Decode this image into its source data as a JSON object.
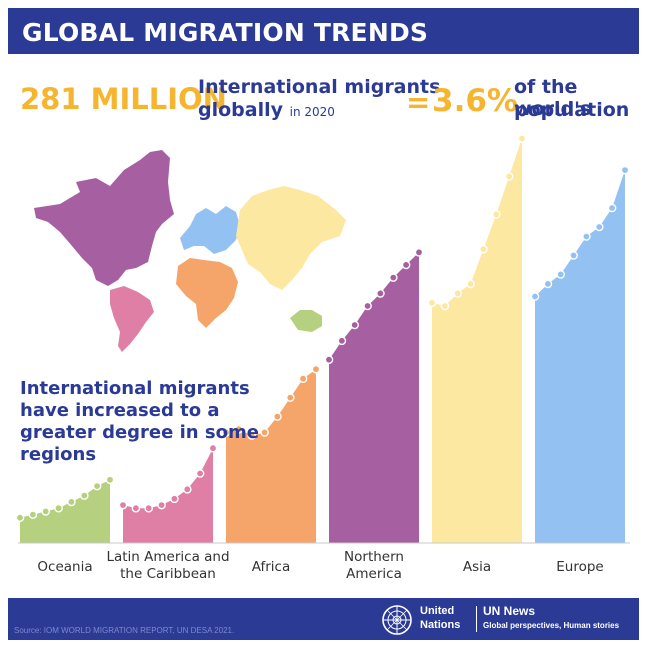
{
  "header": {
    "title": "GLOBAL MIGRATION TRENDS"
  },
  "stats": {
    "migrants_number": "281 MILLION",
    "migrants_desc_line1": "International migrants",
    "migrants_desc_line2": "globally",
    "migrants_year": "in 2020",
    "equals": "=",
    "share": "3.6%",
    "share_desc_line1": "of the world's",
    "share_desc_line2": "population"
  },
  "headline": "International migrants have increased to a greater degree in some regions",
  "chart_data": {
    "type": "area",
    "title": "",
    "xlabel": "",
    "ylabel": "",
    "series": [
      {
        "name": "Oceania",
        "label_lines": [
          "Oceania"
        ],
        "color": "#b5d07f",
        "values": [
          0.08,
          0.09,
          0.1,
          0.11,
          0.13,
          0.15,
          0.18,
          0.2
        ]
      },
      {
        "name": "Latin America and the Caribbean",
        "label_lines": [
          "Latin America and",
          "the Caribbean"
        ],
        "color": "#e07fa6",
        "values": [
          0.12,
          0.11,
          0.11,
          0.12,
          0.14,
          0.17,
          0.22,
          0.3
        ]
      },
      {
        "name": "Africa",
        "label_lines": [
          "Africa"
        ],
        "color": "#f6a56a",
        "values": [
          0.35,
          0.36,
          0.34,
          0.35,
          0.4,
          0.46,
          0.52,
          0.55
        ]
      },
      {
        "name": "Northern America",
        "label_lines": [
          "Northern",
          "America"
        ],
        "color": "#a660a1",
        "values": [
          0.58,
          0.64,
          0.69,
          0.75,
          0.79,
          0.84,
          0.88,
          0.92
        ]
      },
      {
        "name": "Asia",
        "label_lines": [
          "Asia"
        ],
        "color": "#fde8a1",
        "values": [
          0.76,
          0.75,
          0.79,
          0.82,
          0.93,
          1.04,
          1.16,
          1.28
        ]
      },
      {
        "name": "Europe",
        "label_lines": [
          "Europe"
        ],
        "color": "#93c1f2",
        "values": [
          0.78,
          0.82,
          0.85,
          0.91,
          0.97,
          1.0,
          1.06,
          1.18
        ]
      }
    ]
  },
  "map": {
    "regions": [
      {
        "name": "Northern America",
        "color": "#a660a1"
      },
      {
        "name": "Latin America and the Caribbean",
        "color": "#e07fa6"
      },
      {
        "name": "Europe",
        "color": "#93c1f2"
      },
      {
        "name": "Africa",
        "color": "#f6a56a"
      },
      {
        "name": "Asia",
        "color": "#fde8a1"
      },
      {
        "name": "Oceania",
        "color": "#b5d07f"
      }
    ]
  },
  "footer": {
    "source": "Source: IOM WORLD MIGRATION REPORT, UN DESA 2021.",
    "un_line1": "United",
    "un_line2": "Nations",
    "news_title": "UN News",
    "news_tagline": "Global perspectives, Human stories"
  },
  "colors": {
    "brand_blue": "#2a3a95",
    "accent_yellow": "#f6b52f"
  },
  "icons": {
    "un_emblem": "un-emblem-icon"
  }
}
